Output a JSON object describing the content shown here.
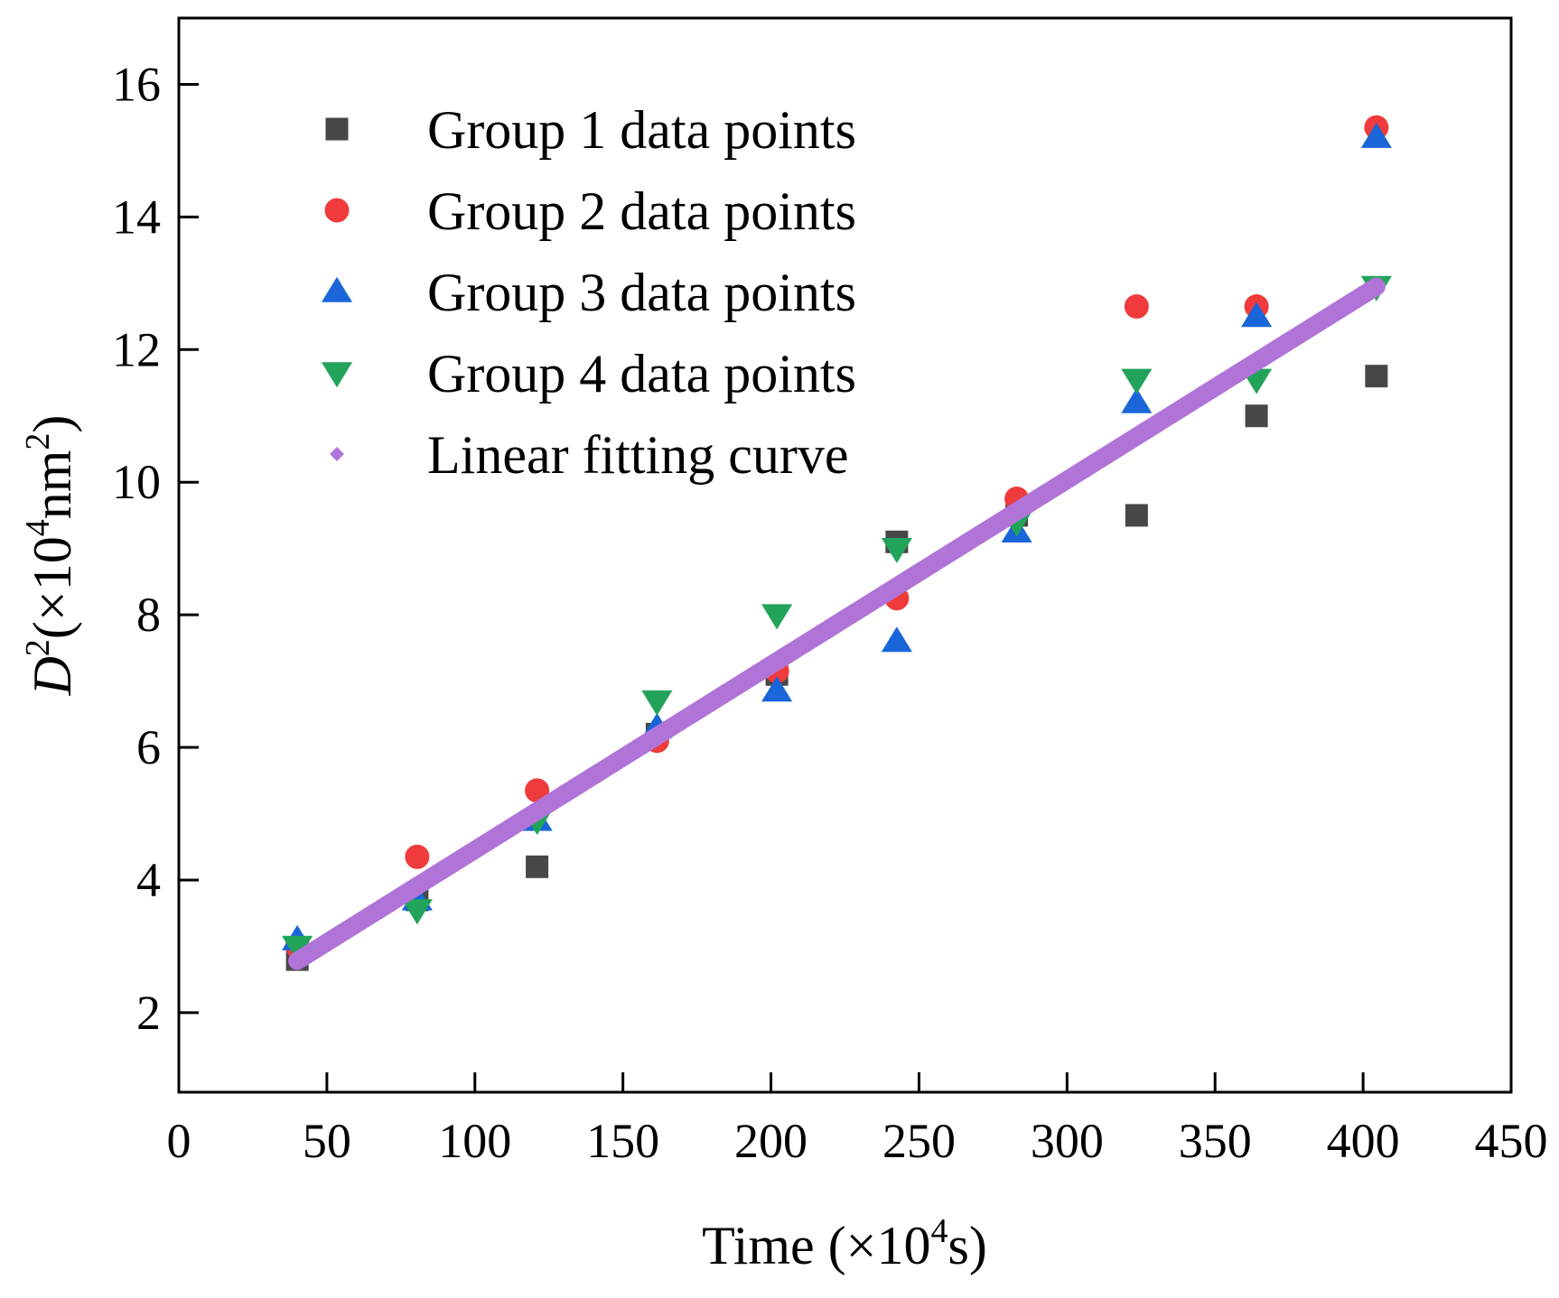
{
  "chart_data": {
    "type": "scatter",
    "xlabel": "Time (×10⁴s)",
    "ylabel": "D²(×10⁴nm²)",
    "xlim": [
      0,
      450
    ],
    "ylim": [
      0.8,
      17
    ],
    "xticks": [
      0,
      50,
      100,
      150,
      200,
      250,
      300,
      350,
      400,
      450
    ],
    "yticks": [
      2,
      4,
      6,
      8,
      10,
      12,
      14,
      16
    ],
    "x_tick_labels": [
      "0",
      "50",
      "100",
      "150",
      "200",
      "250",
      "300",
      "350",
      "400",
      "450"
    ],
    "y_tick_labels": [
      "2",
      "4",
      "6",
      "8",
      "10",
      "12",
      "14",
      "16"
    ],
    "x": [
      40,
      80.5,
      121,
      161.5,
      202,
      242.5,
      283,
      323.5,
      364,
      404.5
    ],
    "legend_position": "top-left",
    "series": [
      {
        "name": "Group 1 data points",
        "marker": "square",
        "color": "#474747",
        "values": [
          2.8,
          3.7,
          4.2,
          6.2,
          7.1,
          9.1,
          9.5,
          9.5,
          11.0,
          11.6
        ]
      },
      {
        "name": "Group 2 data points",
        "marker": "circle",
        "color": "#ef3b3b",
        "values": [
          3.0,
          4.35,
          5.35,
          6.1,
          7.15,
          8.25,
          9.75,
          12.65,
          12.65,
          15.35
        ]
      },
      {
        "name": "Group 3 data points",
        "marker": "triangle-up",
        "color": "#1a66d9",
        "values": [
          3.1,
          3.7,
          4.9,
          6.3,
          6.85,
          7.6,
          9.25,
          11.2,
          12.5,
          15.2
        ]
      },
      {
        "name": "Group 4 data points",
        "marker": "triangle-down",
        "color": "#22a35a",
        "values": [
          3.0,
          3.55,
          4.9,
          6.7,
          8.0,
          9.0,
          9.4,
          11.55,
          11.55,
          12.95
        ]
      },
      {
        "name": "Linear fitting curve",
        "marker": "diamond",
        "kind": "line",
        "color": "#b074d9",
        "x": [
          40,
          404.5
        ],
        "values": [
          2.78,
          12.95
        ]
      }
    ]
  }
}
